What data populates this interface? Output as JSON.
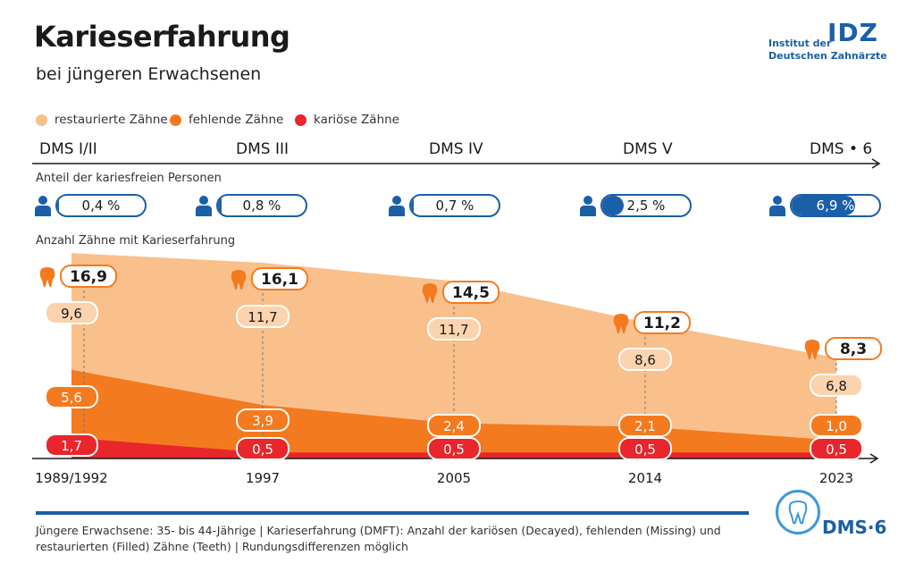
{
  "header": {
    "title": "Karieserfahrung",
    "subtitle": "bei jüngeren Erwachsenen",
    "logo_line1": "Institut der",
    "logo_line2": "Deutschen Zahnärzte",
    "logo_mark": "IDZ"
  },
  "legend": [
    {
      "label": "restaurierte Zähne",
      "color": "#f9c08c"
    },
    {
      "label": "fehlende Zähne",
      "color": "#f47a1f"
    },
    {
      "label": "kariöse Zähne",
      "color": "#e8262b"
    }
  ],
  "studies": [
    "DMS I/II",
    "DMS III",
    "DMS IV",
    "DMS V",
    "DMS • 6"
  ],
  "section_labels": {
    "cariesfree": "Anteil der kariesfreien Personen",
    "teeth": "Anzahl Zähne mit Karieserfahrung"
  },
  "cariesfree": [
    {
      "label": "0,4 %",
      "value": 0.4
    },
    {
      "label": "0,8 %",
      "value": 0.8
    },
    {
      "label": "0,7 %",
      "value": 0.7
    },
    {
      "label": "2,5 %",
      "value": 2.5
    },
    {
      "label": "6,9 %",
      "value": 6.9
    }
  ],
  "footer": {
    "note": "Jüngere Erwachsene: 35- bis 44-Jährige | Karieserfahrung (DMFT): Anzahl der kariösen (Decayed), fehlenden (Missing) und restaurierten (Filled) Zähne (Teeth) | Rundungsdifferenzen möglich",
    "brand": "DMS·6"
  },
  "chart_data": {
    "type": "area",
    "stacked": true,
    "categories": [
      "1989/1992",
      "1997",
      "2005",
      "2014",
      "2023"
    ],
    "series": [
      {
        "name": "kariöse Zähne",
        "color": "#e8262b",
        "values": [
          1.7,
          0.5,
          0.5,
          0.5,
          0.5
        ],
        "labels": [
          "1,7",
          "0,5",
          "0,5",
          "0,5",
          "0,5"
        ]
      },
      {
        "name": "fehlende Zähne",
        "color": "#f47a1f",
        "values": [
          5.6,
          3.9,
          2.4,
          2.1,
          1.0
        ],
        "labels": [
          "5,6",
          "3,9",
          "2,4",
          "2,1",
          "1,0"
        ]
      },
      {
        "name": "restaurierte Zähne",
        "color": "#f9c08c",
        "values": [
          9.6,
          11.7,
          11.7,
          8.6,
          6.8
        ],
        "labels": [
          "9,6",
          "11,7",
          "11,7",
          "8,6",
          "6,8"
        ]
      }
    ],
    "totals": [
      16.9,
      16.1,
      14.5,
      11.2,
      8.3
    ],
    "total_labels": [
      "16,9",
      "16,1",
      "14,5",
      "11,2",
      "8,3"
    ]
  }
}
